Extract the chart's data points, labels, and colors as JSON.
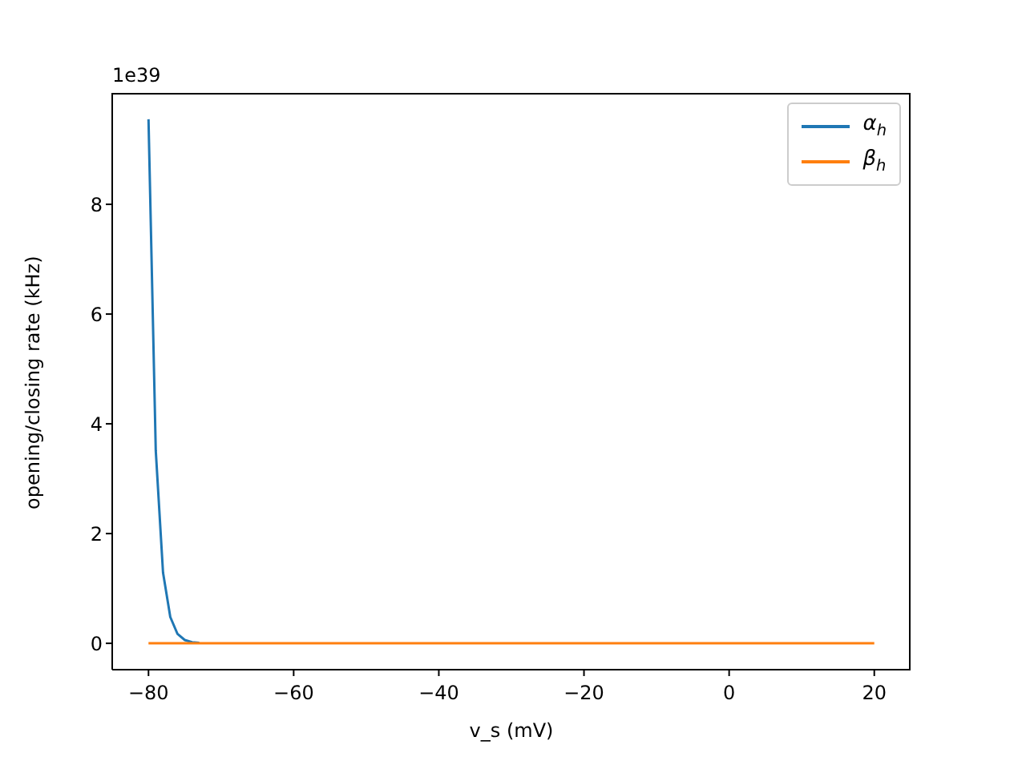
{
  "chart_data": {
    "type": "line",
    "xlabel": "v_s (mV)",
    "ylabel": "opening/closing rate (kHz)",
    "annotations": [
      "1e39"
    ],
    "series": [
      {
        "name": "α$_{h}$",
        "color": "#1f77b4",
        "x": [
          -80,
          -79,
          -78,
          -77,
          -76,
          -75,
          -74,
          -73
        ],
        "values": [
          9.55,
          3.51,
          1.29,
          0.48,
          0.17,
          0.06,
          0.02,
          0.01
        ]
      },
      {
        "name": "β$_{h}$",
        "color": "#ff7f0e",
        "x": [
          -80,
          -60,
          -40,
          -20,
          0,
          20
        ],
        "values": [
          0,
          0,
          0,
          0,
          0,
          0
        ]
      }
    ],
    "xlim": [
      -85,
      25
    ],
    "xticks": [
      {
        "value": -80,
        "label": "−80"
      },
      {
        "value": -60,
        "label": "−60"
      },
      {
        "value": -40,
        "label": "−40"
      },
      {
        "value": -20,
        "label": "−20"
      },
      0,
      20
    ],
    "ylim": [
      -0.48,
      10.03
    ],
    "yticks": [
      0,
      2,
      4,
      6,
      8
    ],
    "grid": false,
    "legend": "top right",
    "marker": "none",
    "line_style": "solid"
  }
}
